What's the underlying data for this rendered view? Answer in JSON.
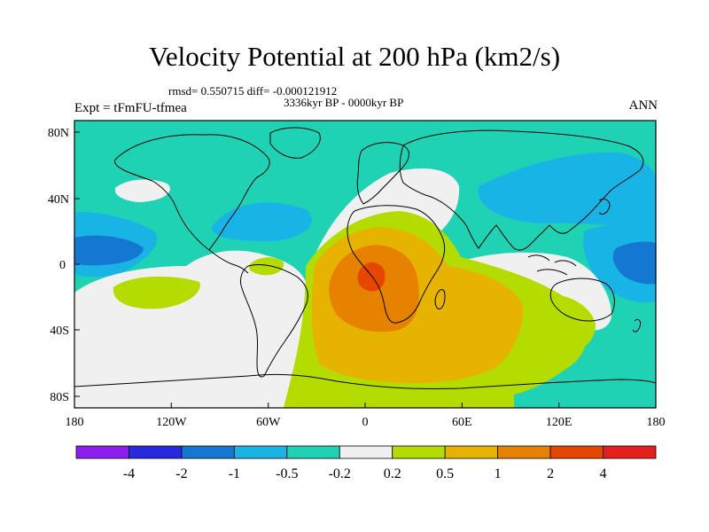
{
  "title": "Velocity Potential at 200 hPa (km2/s)",
  "stats": "rmsd= 0.550715 diff= -0.000121912",
  "period": "3336kyr BP - 0000kyr BP",
  "experiment": "Expt = tFmFU-tfmea",
  "season": "ANN",
  "map": {
    "lon_ticks": [
      "180",
      "120W",
      "60W",
      "0",
      "60E",
      "120E",
      "180"
    ],
    "lat_ticks": [
      "80N",
      "40N",
      "0",
      "40S",
      "80S"
    ],
    "colors": {
      "land_outline": "#000000",
      "background_level": "#1fd2b4"
    }
  },
  "colorbar": {
    "labels": [
      "-4",
      "-2",
      "-1",
      "-0.5",
      "-0.2",
      "0.2",
      "0.5",
      "1",
      "2",
      "4"
    ],
    "colors": [
      "#8c1ef0",
      "#2828e0",
      "#1478d2",
      "#19b4e6",
      "#1fd2b4",
      "#f0f0f0",
      "#b4dc00",
      "#e6b400",
      "#e68200",
      "#e64600",
      "#e61e1e"
    ]
  }
}
